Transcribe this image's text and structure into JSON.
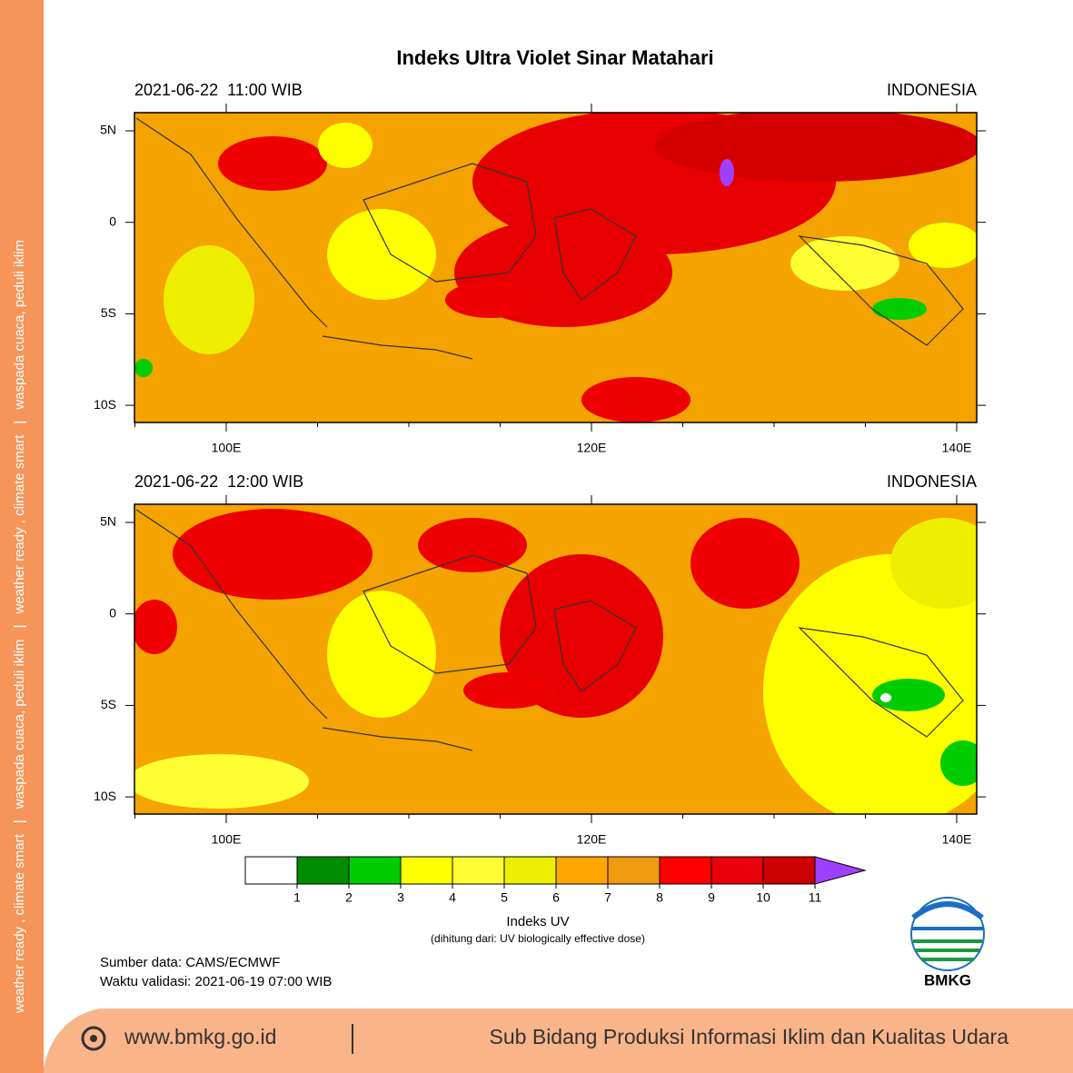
{
  "title": "Indeks Ultra Violet Sinar Matahari",
  "panels": [
    {
      "datetime": "2021-06-22  11:00 WIB",
      "region": "INDONESIA",
      "lat_labels": [
        "5N",
        "0",
        "5S",
        "10S"
      ],
      "lon_labels": [
        "100E",
        "120E",
        "140E"
      ]
    },
    {
      "datetime": "2021-06-22  12:00 WIB",
      "region": "INDONESIA",
      "lat_labels": [
        "5N",
        "0",
        "5S",
        "10S"
      ],
      "lon_labels": [
        "100E",
        "120E",
        "140E"
      ]
    }
  ],
  "colorbar": {
    "label": "Indeks UV",
    "note": "(dihitung dari: UV biologically effective dose)",
    "ticks": [
      1,
      2,
      3,
      4,
      5,
      6,
      7,
      8,
      9,
      10,
      11
    ],
    "colors": [
      "#ffffff",
      "#008c00",
      "#00cc00",
      "#ffff00",
      "#ffff33",
      "#eeee00",
      "#ffa500",
      "#f09a10",
      "#ff0000",
      "#e8000a",
      "#cc0000",
      "#a040ff"
    ]
  },
  "source": "Sumber data: CAMS/ECMWF",
  "validity": "Waktu validasi: 2021-06-19 07:00 WIB",
  "logo": "BMKG",
  "side_text": [
    "weather ready , climate smart",
    "waspada cuaca, peduli iklim",
    "weather ready , climate smart",
    "waspada cuaca, peduli iklim"
  ],
  "footer": {
    "url": "www.bmkg.go.id",
    "unit": "Sub Bidang Produksi Informasi Iklim dan Kualitas Udara"
  }
}
